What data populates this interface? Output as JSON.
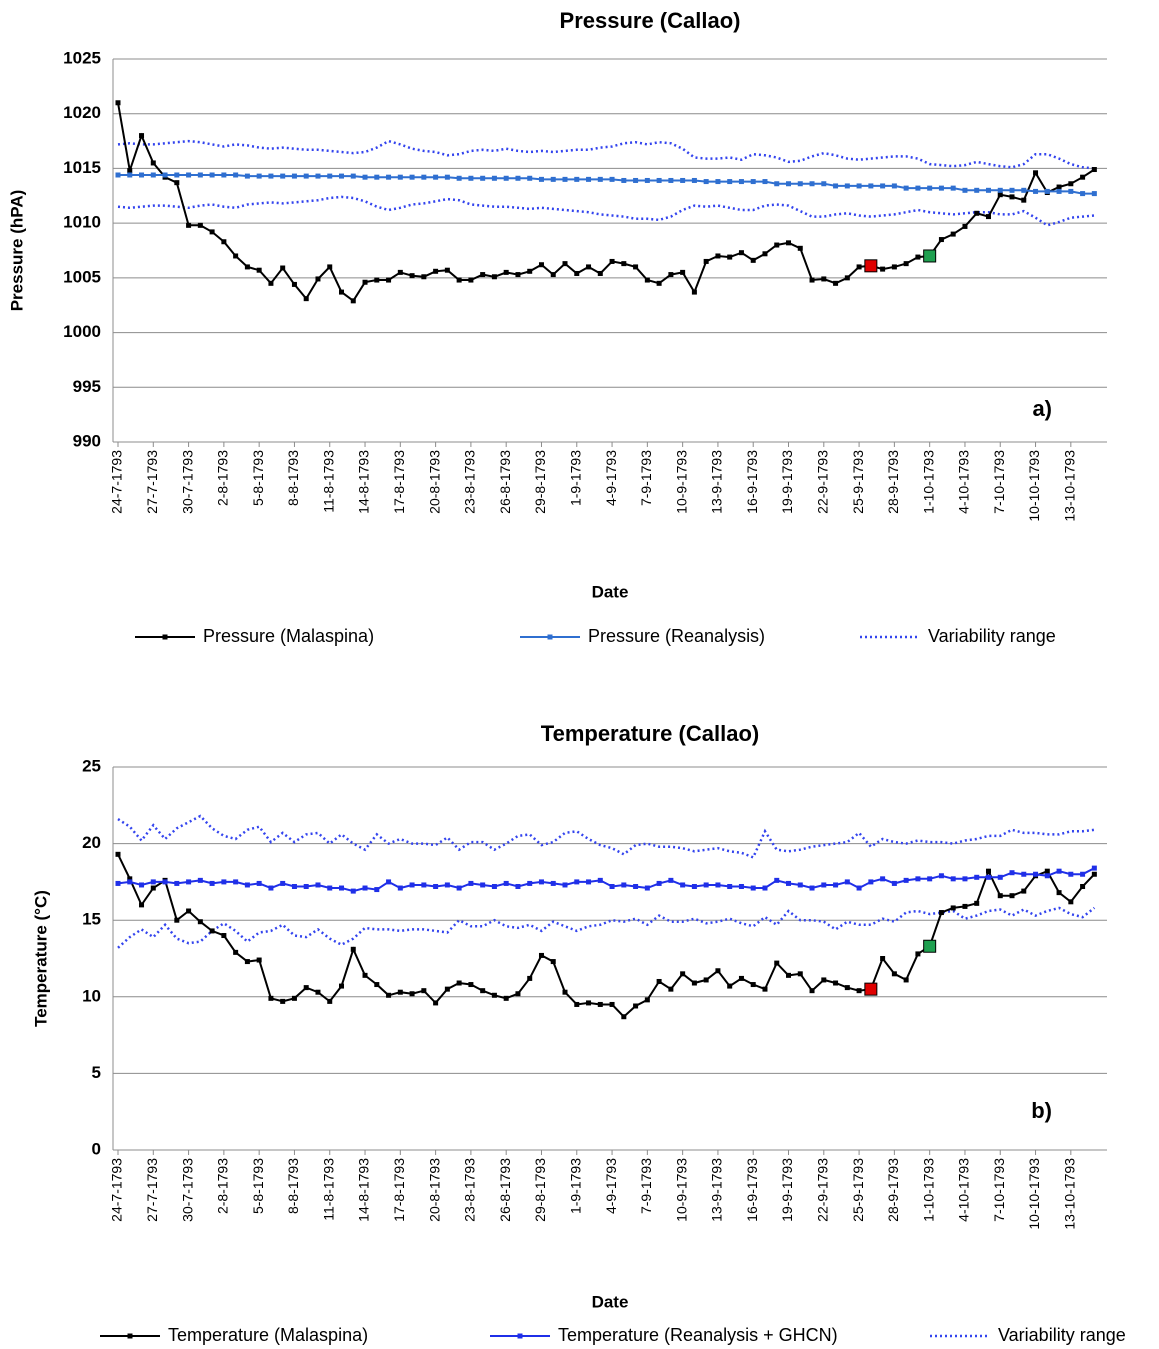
{
  "chart_data": [
    {
      "type": "line",
      "title": "Pressure (Callao)",
      "x_label": "Date",
      "y_label": "Pressure (hPA)",
      "annotation": "a)",
      "categories": [
        "24-7-1793",
        null,
        null,
        "27-7-1793",
        null,
        null,
        "30-7-1793",
        null,
        null,
        "2-8-1793",
        null,
        null,
        "5-8-1793",
        null,
        null,
        "8-8-1793",
        null,
        null,
        "11-8-1793",
        null,
        null,
        "14-8-1793",
        null,
        null,
        "17-8-1793",
        null,
        null,
        "20-8-1793",
        null,
        null,
        "23-8-1793",
        null,
        null,
        "26-8-1793",
        null,
        null,
        "29-8-1793",
        null,
        null,
        "1-9-1793",
        null,
        null,
        "4-9-1793",
        null,
        null,
        "7-9-1793",
        null,
        null,
        "10-9-1793",
        null,
        null,
        "13-9-1793",
        null,
        null,
        "16-9-1793",
        null,
        null,
        "19-9-1793",
        null,
        null,
        "22-9-1793",
        null,
        null,
        "25-9-1793",
        null,
        null,
        "28-9-1793",
        null,
        null,
        "1-10-1793",
        null,
        null,
        "4-10-1793",
        null,
        null,
        "7-10-1793",
        null,
        null,
        "10-10-1793",
        null,
        null,
        "13-10-1793",
        null,
        null
      ],
      "ylim": [
        990,
        1025
      ],
      "yticks": [
        990,
        995,
        1000,
        1005,
        1010,
        1015,
        1020,
        1025
      ],
      "grid": true,
      "series": [
        {
          "name": "Pressure (Malaspina)",
          "color": "#000000",
          "style": "solid",
          "highlights": [
            {
              "index": 64,
              "color": "#e00000"
            },
            {
              "index": 69,
              "color": "#1fa050"
            }
          ],
          "values": [
            1021,
            1014.8,
            1018,
            1015.5,
            1014.2,
            1013.7,
            1009.8,
            1009.8,
            1009.2,
            1008.3,
            1007.0,
            1006.0,
            1005.7,
            1004.5,
            1005.9,
            1004.4,
            1003.1,
            1004.9,
            1006.0,
            1003.7,
            1002.9,
            1004.6,
            1004.8,
            1004.8,
            1005.5,
            1005.2,
            1005.1,
            1005.6,
            1005.7,
            1004.8,
            1004.8,
            1005.3,
            1005.1,
            1005.5,
            1005.3,
            1005.6,
            1006.2,
            1005.3,
            1006.3,
            1005.4,
            1006.0,
            1005.4,
            1006.5,
            1006.3,
            1006.0,
            1004.8,
            1004.5,
            1005.3,
            1005.5,
            1003.7,
            1006.5,
            1007.0,
            1006.9,
            1007.3,
            1006.6,
            1007.2,
            1008.0,
            1008.2,
            1007.7,
            1004.8,
            1004.9,
            1004.5,
            1005.0,
            1006.0,
            1006.1,
            1005.8,
            1006.0,
            1006.3,
            1006.9,
            1007.0,
            1008.5,
            1009.0,
            1009.7,
            1010.9,
            1010.6,
            1012.6,
            1012.4,
            1012.1,
            1014.6,
            1012.8,
            1013.3,
            1013.6,
            1014.2,
            1014.9
          ]
        },
        {
          "name": "Pressure (Reanalysis)",
          "color": "#2f6fd0",
          "style": "solid",
          "values": [
            1014.4,
            1014.4,
            1014.4,
            1014.4,
            1014.4,
            1014.4,
            1014.4,
            1014.4,
            1014.4,
            1014.4,
            1014.4,
            1014.3,
            1014.3,
            1014.3,
            1014.3,
            1014.3,
            1014.3,
            1014.3,
            1014.3,
            1014.3,
            1014.3,
            1014.2,
            1014.2,
            1014.2,
            1014.2,
            1014.2,
            1014.2,
            1014.2,
            1014.2,
            1014.1,
            1014.1,
            1014.1,
            1014.1,
            1014.1,
            1014.1,
            1014.1,
            1014.0,
            1014.0,
            1014.0,
            1014.0,
            1014.0,
            1014.0,
            1014.0,
            1013.9,
            1013.9,
            1013.9,
            1013.9,
            1013.9,
            1013.9,
            1013.9,
            1013.8,
            1013.8,
            1013.8,
            1013.8,
            1013.8,
            1013.8,
            1013.6,
            1013.6,
            1013.6,
            1013.6,
            1013.6,
            1013.4,
            1013.4,
            1013.4,
            1013.4,
            1013.4,
            1013.4,
            1013.2,
            1013.2,
            1013.2,
            1013.2,
            1013.2,
            1013.0,
            1013.0,
            1013.0,
            1013.0,
            1013.0,
            1013.0,
            1012.9,
            1012.9,
            1012.9,
            1012.9,
            1012.7,
            1012.7
          ]
        },
        {
          "name": "Variability range",
          "color": "#3344ee",
          "style": "dotted",
          "upper": [
            1017.2,
            1017.3,
            1017.2,
            1017.2,
            1017.3,
            1017.4,
            1017.5,
            1017.4,
            1017.2,
            1017.0,
            1017.2,
            1017.1,
            1016.9,
            1016.8,
            1016.9,
            1016.8,
            1016.7,
            1016.7,
            1016.6,
            1016.5,
            1016.4,
            1016.5,
            1016.9,
            1017.5,
            1017.2,
            1016.8,
            1016.6,
            1016.5,
            1016.2,
            1016.3,
            1016.6,
            1016.7,
            1016.6,
            1016.8,
            1016.6,
            1016.5,
            1016.6,
            1016.5,
            1016.6,
            1016.7,
            1016.7,
            1016.9,
            1017.0,
            1017.3,
            1017.4,
            1017.2,
            1017.4,
            1017.3,
            1016.8,
            1016.0,
            1015.9,
            1015.9,
            1016.0,
            1015.8,
            1016.3,
            1016.2,
            1016.0,
            1015.6,
            1015.7,
            1016.1,
            1016.4,
            1016.2,
            1015.9,
            1015.8,
            1015.9,
            1016.0,
            1016.1,
            1016.1,
            1015.9,
            1015.4,
            1015.3,
            1015.2,
            1015.3,
            1015.6,
            1015.4,
            1015.2,
            1015.1,
            1015.4,
            1016.3,
            1016.3,
            1015.9,
            1015.4,
            1015.1,
            1015.0
          ],
          "lower": [
            1011.5,
            1011.4,
            1011.5,
            1011.6,
            1011.6,
            1011.5,
            1011.4,
            1011.6,
            1011.7,
            1011.5,
            1011.4,
            1011.7,
            1011.8,
            1011.9,
            1011.8,
            1011.9,
            1012.0,
            1012.1,
            1012.3,
            1012.4,
            1012.3,
            1012.0,
            1011.5,
            1011.2,
            1011.4,
            1011.7,
            1011.8,
            1012.0,
            1012.2,
            1012.1,
            1011.7,
            1011.6,
            1011.5,
            1011.5,
            1011.4,
            1011.3,
            1011.4,
            1011.3,
            1011.2,
            1011.1,
            1011.0,
            1010.8,
            1010.7,
            1010.6,
            1010.4,
            1010.4,
            1010.3,
            1010.6,
            1011.2,
            1011.6,
            1011.5,
            1011.6,
            1011.4,
            1011.2,
            1011.2,
            1011.6,
            1011.7,
            1011.6,
            1011.1,
            1010.6,
            1010.6,
            1010.8,
            1010.9,
            1010.7,
            1010.6,
            1010.7,
            1010.8,
            1011.0,
            1011.2,
            1011.0,
            1010.9,
            1010.8,
            1010.9,
            1011.0,
            1011.0,
            1010.8,
            1010.8,
            1011.1,
            1010.5,
            1009.8,
            1010.1,
            1010.5,
            1010.6,
            1010.7
          ]
        }
      ]
    },
    {
      "type": "line",
      "title": "Temperature (Callao)",
      "x_label": "Date",
      "y_label": "Temperature (°C)",
      "annotation": "b)",
      "categories": [
        "24-7-1793",
        null,
        null,
        "27-7-1793",
        null,
        null,
        "30-7-1793",
        null,
        null,
        "2-8-1793",
        null,
        null,
        "5-8-1793",
        null,
        null,
        "8-8-1793",
        null,
        null,
        "11-8-1793",
        null,
        null,
        "14-8-1793",
        null,
        null,
        "17-8-1793",
        null,
        null,
        "20-8-1793",
        null,
        null,
        "23-8-1793",
        null,
        null,
        "26-8-1793",
        null,
        null,
        "29-8-1793",
        null,
        null,
        "1-9-1793",
        null,
        null,
        "4-9-1793",
        null,
        null,
        "7-9-1793",
        null,
        null,
        "10-9-1793",
        null,
        null,
        "13-9-1793",
        null,
        null,
        "16-9-1793",
        null,
        null,
        "19-9-1793",
        null,
        null,
        "22-9-1793",
        null,
        null,
        "25-9-1793",
        null,
        null,
        "28-9-1793",
        null,
        null,
        "1-10-1793",
        null,
        null,
        "4-10-1793",
        null,
        null,
        "7-10-1793",
        null,
        null,
        "10-10-1793",
        null,
        null,
        "13-10-1793",
        null,
        null
      ],
      "ylim": [
        0,
        25
      ],
      "yticks": [
        0,
        5,
        10,
        15,
        20,
        25
      ],
      "grid": true,
      "series": [
        {
          "name": "Temperature (Malaspina)",
          "color": "#000000",
          "style": "solid",
          "highlights": [
            {
              "index": 64,
              "color": "#e00000"
            },
            {
              "index": 69,
              "color": "#1fa050"
            }
          ],
          "values": [
            19.3,
            17.7,
            16.0,
            17.1,
            17.6,
            15.0,
            15.6,
            14.9,
            14.3,
            14.0,
            12.9,
            12.3,
            12.4,
            9.9,
            9.7,
            9.9,
            10.6,
            10.3,
            9.7,
            10.7,
            13.1,
            11.4,
            10.8,
            10.1,
            10.3,
            10.2,
            10.4,
            9.6,
            10.5,
            10.9,
            10.8,
            10.4,
            10.1,
            9.9,
            10.2,
            11.2,
            12.7,
            12.3,
            10.3,
            9.5,
            9.6,
            9.5,
            9.5,
            8.7,
            9.4,
            9.8,
            11.0,
            10.5,
            11.5,
            10.9,
            11.1,
            11.7,
            10.7,
            11.2,
            10.8,
            10.5,
            12.2,
            11.4,
            11.5,
            10.4,
            11.1,
            10.9,
            10.6,
            10.4,
            10.5,
            12.5,
            11.5,
            11.1,
            12.8,
            13.3,
            15.5,
            15.8,
            15.9,
            16.1,
            18.2,
            16.6,
            16.6,
            16.9,
            17.9,
            18.2,
            16.8,
            16.2,
            17.2,
            18.0
          ]
        },
        {
          "name": "Temperature (Reanalysis + GHCN)",
          "color": "#1f2fe8",
          "style": "solid",
          "values": [
            17.4,
            17.5,
            17.3,
            17.5,
            17.5,
            17.4,
            17.5,
            17.6,
            17.4,
            17.5,
            17.5,
            17.3,
            17.4,
            17.1,
            17.4,
            17.2,
            17.2,
            17.3,
            17.1,
            17.1,
            16.9,
            17.1,
            17.0,
            17.5,
            17.1,
            17.3,
            17.3,
            17.2,
            17.3,
            17.1,
            17.4,
            17.3,
            17.2,
            17.4,
            17.2,
            17.4,
            17.5,
            17.4,
            17.3,
            17.5,
            17.5,
            17.6,
            17.2,
            17.3,
            17.2,
            17.1,
            17.4,
            17.6,
            17.3,
            17.2,
            17.3,
            17.3,
            17.2,
            17.2,
            17.1,
            17.1,
            17.6,
            17.4,
            17.3,
            17.1,
            17.3,
            17.3,
            17.5,
            17.1,
            17.5,
            17.7,
            17.4,
            17.6,
            17.7,
            17.7,
            17.9,
            17.7,
            17.7,
            17.8,
            17.8,
            17.8,
            18.1,
            18.0,
            18.0,
            17.9,
            18.2,
            18.0,
            18.0,
            18.4
          ]
        },
        {
          "name": "Variability range",
          "color": "#3344ee",
          "style": "dotted",
          "upper": [
            21.6,
            21.1,
            20.2,
            21.2,
            20.3,
            21.0,
            21.4,
            21.8,
            21.0,
            20.5,
            20.3,
            20.9,
            21.1,
            20.1,
            20.7,
            20.1,
            20.6,
            20.7,
            20.0,
            20.6,
            20.0,
            19.6,
            20.6,
            20.0,
            20.3,
            20.0,
            20.0,
            19.9,
            20.4,
            19.6,
            20.1,
            20.1,
            19.6,
            20.0,
            20.5,
            20.6,
            19.9,
            20.1,
            20.7,
            20.8,
            20.3,
            19.9,
            19.7,
            19.3,
            19.9,
            20.0,
            19.8,
            19.8,
            19.7,
            19.5,
            19.6,
            19.7,
            19.5,
            19.4,
            19.1,
            20.8,
            19.6,
            19.5,
            19.6,
            19.8,
            19.9,
            20.0,
            20.1,
            20.7,
            19.8,
            20.3,
            20.1,
            20.0,
            20.2,
            20.1,
            20.1,
            20.0,
            20.2,
            20.3,
            20.5,
            20.5,
            20.9,
            20.7,
            20.7,
            20.6,
            20.6,
            20.8,
            20.8,
            20.9
          ],
          "lower": [
            13.2,
            13.9,
            14.4,
            13.9,
            14.7,
            13.8,
            13.5,
            13.6,
            14.3,
            14.8,
            14.3,
            13.6,
            14.2,
            14.3,
            14.7,
            14.0,
            13.9,
            14.4,
            13.8,
            13.4,
            13.8,
            14.5,
            14.4,
            14.4,
            14.3,
            14.4,
            14.4,
            14.3,
            14.2,
            15.0,
            14.6,
            14.6,
            15.0,
            14.6,
            14.5,
            14.7,
            14.3,
            14.9,
            14.6,
            14.3,
            14.6,
            14.7,
            15.0,
            14.9,
            15.1,
            14.7,
            15.3,
            14.9,
            14.9,
            15.1,
            14.8,
            14.9,
            15.1,
            14.8,
            14.6,
            15.2,
            14.7,
            15.6,
            15.0,
            15.0,
            14.9,
            14.4,
            14.9,
            14.7,
            14.7,
            15.1,
            14.9,
            15.5,
            15.6,
            15.4,
            15.5,
            15.6,
            15.1,
            15.3,
            15.6,
            15.7,
            15.3,
            15.7,
            15.3,
            15.6,
            15.8,
            15.4,
            15.2,
            15.8
          ]
        }
      ]
    }
  ]
}
